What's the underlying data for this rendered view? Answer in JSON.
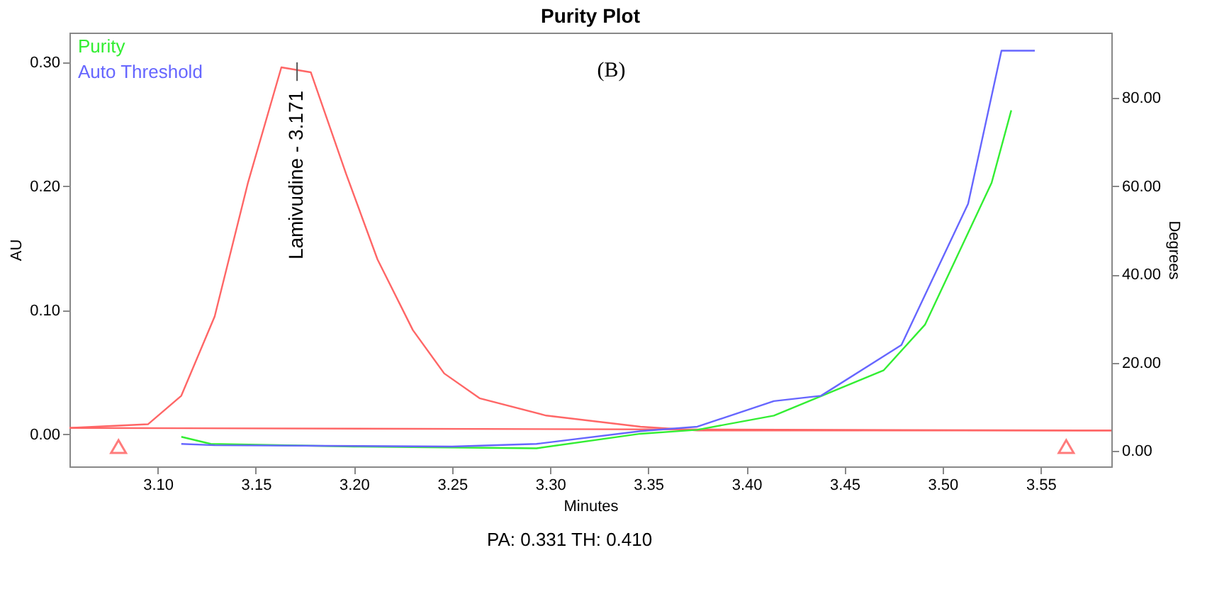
{
  "chart_data": {
    "type": "line",
    "title": "Purity Plot",
    "xlabel": "Minutes",
    "ylabel": "AU",
    "y2label": "Degrees",
    "xlim": [
      3.055,
      3.586
    ],
    "xticks": [
      {
        "value": 3.1,
        "label": "3.10"
      },
      3.15,
      {
        "value": 3.2,
        "label": "3.20"
      },
      3.25,
      {
        "value": 3.3,
        "label": "3.30"
      },
      3.35,
      {
        "value": 3.4,
        "label": "3.40"
      },
      3.45,
      {
        "value": 3.5,
        "label": "3.50"
      },
      3.55
    ],
    "ylim": [
      -0.026,
      0.324
    ],
    "yticks": [
      {
        "value": 0,
        "label": "0.00"
      },
      {
        "value": 0.1,
        "label": "0.10"
      },
      {
        "value": 0.2,
        "label": "0.20"
      },
      {
        "value": 0.3,
        "label": "0.30"
      }
    ],
    "y2lim": [
      -3.5,
      94.8
    ],
    "y2ticks": [
      {
        "value": 0,
        "label": "0.00"
      },
      {
        "value": 20,
        "label": "20.00"
      },
      {
        "value": 40,
        "label": "40.00"
      },
      {
        "value": 60,
        "label": "60.00"
      },
      {
        "value": 80,
        "label": "80.00"
      }
    ],
    "grid": false,
    "legend": "top left",
    "line_style": "solid",
    "series": [
      {
        "color": "#ff6666",
        "x": [
          3.055,
          3.095,
          3.112,
          3.129,
          3.146,
          3.163,
          3.178,
          3.196,
          3.212,
          3.23,
          3.246,
          3.264,
          3.298,
          3.346,
          3.375,
          3.45,
          3.586
        ],
        "values": [
          0.005,
          0.008,
          0.031,
          0.095,
          0.203,
          0.296,
          0.292,
          0.21,
          0.141,
          0.084,
          0.049,
          0.029,
          0.015,
          0.006,
          0.003,
          0.003,
          0.003
        ]
      },
      {
        "color": "#ff6666",
        "x": [
          3.055,
          3.586
        ],
        "values": [
          0.005,
          0.003
        ]
      },
      {
        "type": "scatter",
        "marker": "triangle",
        "color": "#ff4444",
        "x": [
          3.08,
          3.563
        ],
        "values": [
          -0.01,
          -0.01
        ]
      },
      {
        "name": "Purity",
        "color": "#33ee33",
        "axis": "y2",
        "x": [
          3.112,
          3.127,
          3.2,
          3.293,
          3.346,
          3.375,
          3.414,
          3.47,
          3.491,
          3.525,
          3.535
        ],
        "values": [
          3.2,
          1.6,
          1.0,
          0.6,
          3.9,
          4.8,
          8,
          18.3,
          28.6,
          60.8,
          77.2
        ]
      },
      {
        "name": "Auto Threshold",
        "color": "#6666ff",
        "axis": "y2",
        "x": [
          3.112,
          3.129,
          3.25,
          3.293,
          3.346,
          3.375,
          3.414,
          3.438,
          3.479,
          3.513,
          3.53,
          3.547
        ],
        "values": [
          1.6,
          1.3,
          1.0,
          1.6,
          4.5,
          5.5,
          11.3,
          12.5,
          24,
          56,
          90.7,
          90.7
        ]
      }
    ],
    "annotations": [
      {
        "text": "Lamivudine - 3.171",
        "x": 3.171,
        "y": 0.3
      },
      "(B)",
      "PA: 0.331  TH: 0.410"
    ]
  }
}
